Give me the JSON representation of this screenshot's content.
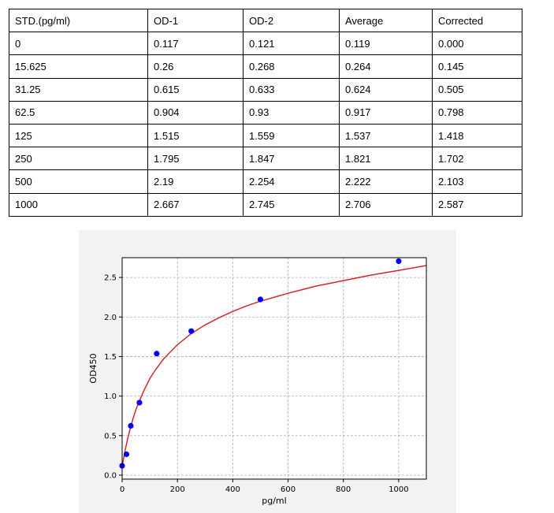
{
  "table": {
    "headers": [
      "STD.(pg/ml)",
      "OD-1",
      "OD-2",
      "Average",
      "Corrected"
    ],
    "rows": [
      [
        "0",
        "0.117",
        "0.121",
        "0.119",
        "0.000"
      ],
      [
        "15.625",
        "0.26",
        "0.268",
        "0.264",
        "0.145"
      ],
      [
        "31.25",
        "0.615",
        "0.633",
        "0.624",
        "0.505"
      ],
      [
        "62.5",
        "0.904",
        "0.93",
        "0.917",
        "0.798"
      ],
      [
        "125",
        "1.515",
        "1.559",
        "1.537",
        "1.418"
      ],
      [
        "250",
        "1.795",
        "1.847",
        "1.821",
        "1.702"
      ],
      [
        "500",
        "2.19",
        "2.254",
        "2.222",
        "2.103"
      ],
      [
        "1000",
        "2.667",
        "2.745",
        "2.706",
        "2.587"
      ]
    ]
  },
  "chart_data": {
    "type": "scatter",
    "title": "",
    "xlabel": "pg/ml",
    "ylabel": "OD450",
    "xlim": [
      0,
      1100
    ],
    "ylim": [
      -0.05,
      2.75
    ],
    "xticks": [
      0,
      200,
      400,
      600,
      800,
      1000
    ],
    "yticks": [
      0.0,
      0.5,
      1.0,
      1.5,
      2.0,
      2.5
    ],
    "ytick_labels": [
      "0.0",
      "0.5",
      "1.0",
      "1.5",
      "2.0",
      "2.5"
    ],
    "grid": true,
    "points": {
      "x": [
        0,
        15.625,
        31.25,
        62.5,
        125,
        250,
        500,
        1000
      ],
      "y": [
        0.119,
        0.264,
        0.624,
        0.917,
        1.537,
        1.821,
        2.222,
        2.706
      ],
      "color": "#0000ff"
    },
    "fit_curve": {
      "color": "#d62728",
      "x": [
        0,
        10,
        20,
        30,
        40,
        50,
        60,
        80,
        100,
        120,
        150,
        200,
        250,
        300,
        350,
        400,
        450,
        500,
        600,
        700,
        800,
        900,
        1000,
        1100
      ],
      "y": [
        0.11,
        0.3,
        0.46,
        0.6,
        0.72,
        0.83,
        0.92,
        1.08,
        1.22,
        1.33,
        1.47,
        1.65,
        1.79,
        1.9,
        1.99,
        2.07,
        2.14,
        2.2,
        2.3,
        2.39,
        2.46,
        2.53,
        2.59,
        2.65
      ]
    }
  }
}
